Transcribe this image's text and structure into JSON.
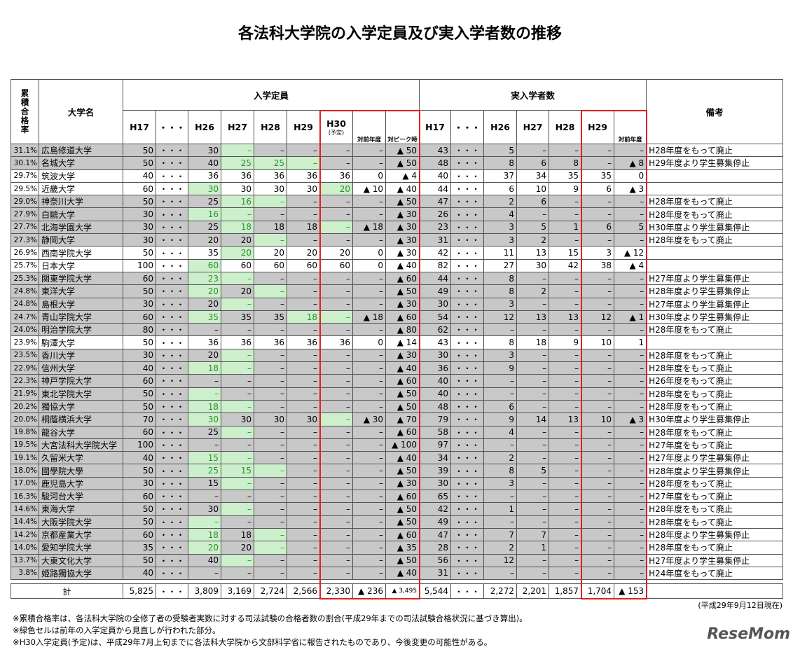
{
  "title": "各法科大学院の入学定員及び実入学者数の推移",
  "header": {
    "rate": "累積合格率",
    "name": "大学名",
    "capacity": "入学定員",
    "actual": "実入学者数",
    "remarks": "備考",
    "h30_note": "(予定)",
    "columns": [
      "H17",
      "・・・",
      "H26",
      "H27",
      "H28",
      "H29",
      "H30",
      "対前年度",
      "対ピーク時",
      "H17",
      "・・・",
      "H26",
      "H27",
      "H28",
      "H29",
      "対前年度"
    ]
  },
  "rows": [
    {
      "cells": [
        "31.1%",
        "広島修道大学",
        "50",
        "・・・",
        "30",
        "–",
        "–",
        "–",
        "–",
        "–",
        "▲ 50",
        "43",
        "・・・",
        "5",
        "–",
        "–",
        "–",
        "–",
        "H28年度をもって廃止"
      ],
      "green": [
        5
      ]
    },
    {
      "cells": [
        "30.1%",
        "名城大学",
        "50",
        "・・・",
        "40",
        "25",
        "25",
        "–",
        "–",
        "–",
        "▲ 50",
        "48",
        "・・・",
        "8",
        "6",
        "8",
        "–",
        "▲ 8",
        "H29年度より学生募集停止"
      ],
      "green": [
        5,
        6,
        7
      ]
    },
    {
      "cells": [
        "29.7%",
        "筑波大学",
        "40",
        "・・・",
        "36",
        "36",
        "36",
        "36",
        "36",
        "0",
        "▲ 4",
        "40",
        "・・・",
        "37",
        "34",
        "35",
        "35",
        "0",
        ""
      ],
      "green": []
    },
    {
      "cells": [
        "29.5%",
        "近畿大学",
        "60",
        "・・・",
        "30",
        "30",
        "30",
        "30",
        "20",
        "▲ 10",
        "▲ 40",
        "44",
        "・・・",
        "6",
        "10",
        "9",
        "6",
        "▲ 3",
        ""
      ],
      "green": [
        4,
        8
      ]
    },
    {
      "cells": [
        "29.0%",
        "神奈川大学",
        "50",
        "・・・",
        "25",
        "16",
        "–",
        "–",
        "–",
        "–",
        "▲ 50",
        "47",
        "・・・",
        "2",
        "6",
        "–",
        "–",
        "–",
        "H28年度をもって廃止"
      ],
      "green": [
        5,
        6
      ]
    },
    {
      "cells": [
        "27.9%",
        "白鷗大学",
        "30",
        "・・・",
        "16",
        "–",
        "–",
        "–",
        "–",
        "–",
        "▲ 30",
        "26",
        "・・・",
        "4",
        "–",
        "–",
        "–",
        "–",
        "H28年度をもって廃止"
      ],
      "green": [
        4,
        5
      ]
    },
    {
      "cells": [
        "27.7%",
        "北海学園大学",
        "30",
        "・・・",
        "25",
        "18",
        "18",
        "18",
        "–",
        "▲ 18",
        "▲ 30",
        "23",
        "・・・",
        "3",
        "5",
        "1",
        "6",
        "5",
        "H30年度より学生募集停止"
      ],
      "green": [
        5,
        8
      ]
    },
    {
      "cells": [
        "27.3%",
        "静岡大学",
        "30",
        "・・・",
        "20",
        "20",
        "–",
        "–",
        "–",
        "–",
        "▲ 30",
        "31",
        "・・・",
        "3",
        "2",
        "–",
        "–",
        "–",
        "H28年度をもって廃止"
      ],
      "green": [
        6
      ]
    },
    {
      "cells": [
        "26.9%",
        "西南学院大学",
        "50",
        "・・・",
        "35",
        "20",
        "20",
        "20",
        "20",
        "0",
        "▲ 30",
        "42",
        "・・・",
        "11",
        "13",
        "15",
        "3",
        "▲ 12",
        ""
      ],
      "green": [
        5
      ]
    },
    {
      "cells": [
        "25.7%",
        "日本大学",
        "100",
        "・・・",
        "60",
        "60",
        "60",
        "60",
        "60",
        "0",
        "▲ 40",
        "82",
        "・・・",
        "27",
        "30",
        "42",
        "38",
        "▲ 4",
        ""
      ],
      "green": [
        4
      ]
    },
    {
      "cells": [
        "25.3%",
        "関東学院大学",
        "60",
        "・・・",
        "23",
        "–",
        "–",
        "–",
        "–",
        "–",
        "▲ 60",
        "44",
        "・・・",
        "8",
        "–",
        "–",
        "–",
        "–",
        "H27年度より学生募集停止"
      ],
      "green": [
        4,
        5
      ]
    },
    {
      "cells": [
        "24.8%",
        "東洋大学",
        "50",
        "・・・",
        "20",
        "20",
        "–",
        "–",
        "–",
        "–",
        "▲ 50",
        "49",
        "・・・",
        "8",
        "2",
        "–",
        "–",
        "–",
        "H28年度より学生募集停止"
      ],
      "green": [
        4,
        6
      ]
    },
    {
      "cells": [
        "24.8%",
        "島根大学",
        "30",
        "・・・",
        "20",
        "–",
        "–",
        "–",
        "–",
        "–",
        "▲ 30",
        "30",
        "・・・",
        "3",
        "–",
        "–",
        "–",
        "–",
        "H27年度より学生募集停止"
      ],
      "green": [
        5
      ]
    },
    {
      "cells": [
        "24.7%",
        "青山学院大学",
        "60",
        "・・・",
        "35",
        "35",
        "35",
        "18",
        "–",
        "▲ 18",
        "▲ 60",
        "54",
        "・・・",
        "12",
        "13",
        "13",
        "12",
        "▲ 1",
        "H30年度より学生募集停止"
      ],
      "green": [
        4,
        7,
        8
      ]
    },
    {
      "cells": [
        "24.0%",
        "明治学院大学",
        "80",
        "・・・",
        "–",
        "–",
        "–",
        "–",
        "–",
        "–",
        "▲ 80",
        "62",
        "・・・",
        "–",
        "–",
        "–",
        "–",
        "–",
        "H28年度をもって廃止"
      ],
      "green": []
    },
    {
      "cells": [
        "23.9%",
        "駒澤大学",
        "50",
        "・・・",
        "36",
        "36",
        "36",
        "36",
        "36",
        "0",
        "▲ 14",
        "43",
        "・・・",
        "8",
        "18",
        "9",
        "10",
        "1",
        ""
      ],
      "green": []
    },
    {
      "cells": [
        "23.5%",
        "香川大学",
        "30",
        "・・・",
        "20",
        "–",
        "–",
        "–",
        "–",
        "–",
        "▲ 30",
        "30",
        "・・・",
        "3",
        "–",
        "–",
        "–",
        "–",
        "H28年度をもって廃止"
      ],
      "green": [
        5
      ]
    },
    {
      "cells": [
        "22.9%",
        "信州大学",
        "40",
        "・・・",
        "18",
        "–",
        "–",
        "–",
        "–",
        "–",
        "▲ 40",
        "36",
        "・・・",
        "9",
        "–",
        "–",
        "–",
        "–",
        "H28年度をもって廃止"
      ],
      "green": [
        4,
        5
      ]
    },
    {
      "cells": [
        "22.3%",
        "神戸学院大学",
        "60",
        "・・・",
        "–",
        "–",
        "–",
        "–",
        "–",
        "–",
        "▲ 60",
        "40",
        "・・・",
        "–",
        "–",
        "–",
        "–",
        "–",
        "H26年度をもって廃止"
      ],
      "green": []
    },
    {
      "cells": [
        "21.9%",
        "東北学院大学",
        "50",
        "・・・",
        "–",
        "–",
        "–",
        "–",
        "–",
        "–",
        "▲ 50",
        "40",
        "・・・",
        "–",
        "–",
        "–",
        "–",
        "–",
        "H28年度をもって廃止"
      ],
      "green": [
        4
      ]
    },
    {
      "cells": [
        "20.2%",
        "獨協大学",
        "50",
        "・・・",
        "18",
        "–",
        "–",
        "–",
        "–",
        "–",
        "▲ 50",
        "48",
        "・・・",
        "6",
        "–",
        "–",
        "–",
        "–",
        "H28年度をもって廃止"
      ],
      "green": [
        4,
        5
      ]
    },
    {
      "cells": [
        "20.0%",
        "桐蔭横浜大学",
        "70",
        "・・・",
        "30",
        "30",
        "30",
        "30",
        "–",
        "▲ 30",
        "▲ 70",
        "79",
        "・・・",
        "9",
        "14",
        "13",
        "10",
        "▲ 3",
        "H30年度より学生募集停止"
      ],
      "green": [
        4,
        8
      ]
    },
    {
      "cells": [
        "19.8%",
        "龍谷大学",
        "60",
        "・・・",
        "25",
        "–",
        "–",
        "–",
        "–",
        "–",
        "▲ 60",
        "58",
        "・・・",
        "4",
        "–",
        "–",
        "–",
        "–",
        "H28年度をもって廃止"
      ],
      "green": [
        5
      ]
    },
    {
      "cells": [
        "19.5%",
        "大宮法科大学院大学",
        "100",
        "・・・",
        "–",
        "–",
        "–",
        "–",
        "–",
        "–",
        "▲ 100",
        "97",
        "・・・",
        "–",
        "–",
        "–",
        "–",
        "–",
        "H27年度をもって廃止"
      ],
      "green": []
    },
    {
      "cells": [
        "19.1%",
        "久留米大学",
        "40",
        "・・・",
        "15",
        "–",
        "–",
        "–",
        "–",
        "–",
        "▲ 40",
        "34",
        "・・・",
        "2",
        "–",
        "–",
        "–",
        "–",
        "H27年度より学生募集停止"
      ],
      "green": [
        4,
        5
      ]
    },
    {
      "cells": [
        "18.0%",
        "國學院大學",
        "50",
        "・・・",
        "25",
        "15",
        "–",
        "–",
        "–",
        "–",
        "▲ 50",
        "39",
        "・・・",
        "8",
        "5",
        "–",
        "–",
        "–",
        "H28年度より学生募集停止"
      ],
      "green": [
        4,
        5,
        6
      ]
    },
    {
      "cells": [
        "17.0%",
        "鹿児島大学",
        "30",
        "・・・",
        "15",
        "–",
        "–",
        "–",
        "–",
        "–",
        "▲ 30",
        "30",
        "・・・",
        "3",
        "–",
        "–",
        "–",
        "–",
        "H28年度をもって廃止"
      ],
      "green": [
        5
      ]
    },
    {
      "cells": [
        "16.3%",
        "駿河台大学",
        "60",
        "・・・",
        "–",
        "–",
        "–",
        "–",
        "–",
        "–",
        "▲ 60",
        "65",
        "・・・",
        "–",
        "–",
        "–",
        "–",
        "–",
        "H27年度をもって廃止"
      ],
      "green": []
    },
    {
      "cells": [
        "14.6%",
        "東海大学",
        "50",
        "・・・",
        "30",
        "–",
        "–",
        "–",
        "–",
        "–",
        "▲ 50",
        "42",
        "・・・",
        "1",
        "–",
        "–",
        "–",
        "–",
        "H28年度をもって廃止"
      ],
      "green": [
        5
      ]
    },
    {
      "cells": [
        "14.4%",
        "大阪学院大学",
        "50",
        "・・・",
        "–",
        "–",
        "–",
        "–",
        "–",
        "–",
        "▲ 50",
        "49",
        "・・・",
        "–",
        "–",
        "–",
        "–",
        "–",
        "H28年度をもって廃止"
      ],
      "green": [
        4
      ]
    },
    {
      "cells": [
        "14.2%",
        "京都産業大学",
        "60",
        "・・・",
        "18",
        "18",
        "–",
        "–",
        "–",
        "–",
        "▲ 60",
        "47",
        "・・・",
        "7",
        "7",
        "–",
        "–",
        "–",
        "H28年度より学生募集停止"
      ],
      "green": [
        4,
        6
      ]
    },
    {
      "cells": [
        "14.0%",
        "愛知学院大学",
        "35",
        "・・・",
        "20",
        "20",
        "–",
        "–",
        "–",
        "–",
        "▲ 35",
        "28",
        "・・・",
        "2",
        "1",
        "–",
        "–",
        "–",
        "H28年度をもって廃止"
      ],
      "green": [
        4,
        6
      ]
    },
    {
      "cells": [
        "13.7%",
        "大東文化大学",
        "50",
        "・・・",
        "40",
        "–",
        "–",
        "–",
        "–",
        "–",
        "▲ 50",
        "56",
        "・・・",
        "12",
        "–",
        "–",
        "–",
        "–",
        "H27年度より学生募集停止"
      ],
      "green": [
        5
      ]
    },
    {
      "cells": [
        "3.8%",
        "姫路獨協大学",
        "40",
        "・・・",
        "–",
        "–",
        "–",
        "–",
        "–",
        "–",
        "▲ 40",
        "31",
        "・・・",
        "–",
        "–",
        "–",
        "–",
        "–",
        "H24年度をもって廃止"
      ],
      "green": []
    }
  ],
  "total": {
    "label": "計",
    "cells": [
      "5,825",
      "・・・",
      "3,809",
      "3,169",
      "2,724",
      "2,566",
      "2,330",
      "▲ 236",
      "▲ 3,495",
      "5,544",
      "・・・",
      "2,272",
      "2,201",
      "1,857",
      "1,704",
      "▲ 153"
    ]
  },
  "date_note": "(平成29年9月12日現在)",
  "notes": [
    "※累積合格率は、各法科大学院の全修了者の受験者実数に対する司法試験の合格者数の割合(平成29年までの司法試験合格状況に基づき算出)。",
    "※緑色セルは前年の入学定員から見直しが行われた部分。",
    "※H30入学定員(予定)は、平成29年7月上旬までに各法科大学院から文部科学省に報告されたものであり、今後変更の可能性がある。"
  ],
  "logo": "ReseMom"
}
